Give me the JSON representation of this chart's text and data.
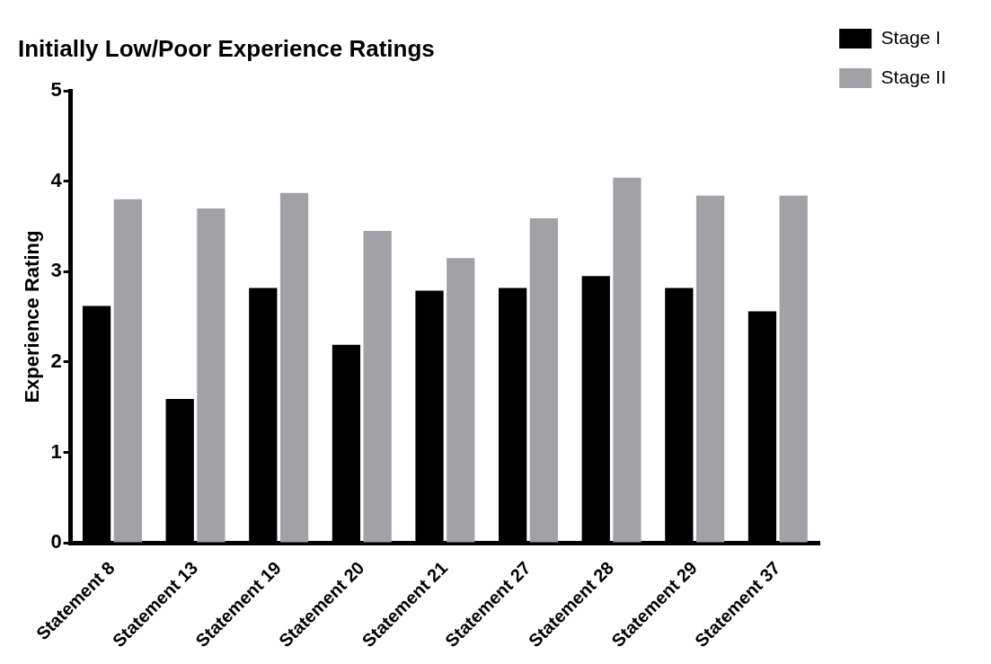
{
  "chart_data": {
    "type": "bar",
    "title": "Initially Low/Poor Experience Ratings",
    "ylabel": "Experience Rating",
    "categories": [
      "Statement 8",
      "Statement 13",
      "Statement 19",
      "Statement 20",
      "Statement 21",
      "Statement 27",
      "Statement 28",
      "Statement 29",
      "Statement 37"
    ],
    "series": [
      {
        "name": "Stage I",
        "color": "#000000",
        "values": [
          2.62,
          1.59,
          2.82,
          2.19,
          2.79,
          2.82,
          2.95,
          2.82,
          2.56
        ]
      },
      {
        "name": "Stage II",
        "color": "#a2a1a6",
        "values": [
          3.8,
          3.7,
          3.87,
          3.45,
          3.15,
          3.59,
          4.04,
          3.84,
          3.84
        ]
      }
    ],
    "ylim": [
      0,
      5
    ],
    "yticks": [
      0,
      1,
      2,
      3,
      4,
      5
    ],
    "grid": false,
    "legend": "top right"
  }
}
